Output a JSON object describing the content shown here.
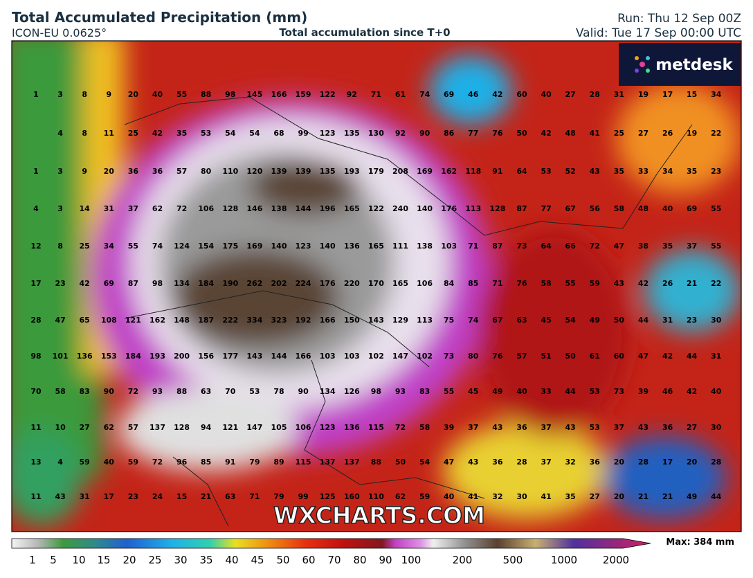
{
  "header": {
    "title": "Total Accumulated Precipitation (mm)",
    "model": "ICON-EU 0.0625°",
    "subtitle": "Total accumulation since T+0",
    "run": "Run: Thu 12 Sep 00Z",
    "valid": "Valid: Tue 17 Sep 00:00 UTC"
  },
  "logo": "metdesk",
  "watermark": "WXCHARTS.COM",
  "map": {
    "grid": [
      [
        1,
        3,
        8,
        9,
        20,
        40,
        55,
        88,
        98,
        145,
        166,
        159,
        122,
        92,
        71,
        61,
        74,
        69,
        46,
        42,
        60,
        40,
        27,
        28,
        31,
        19,
        17,
        15,
        34
      ],
      [
        null,
        4,
        8,
        11,
        25,
        42,
        35,
        53,
        54,
        54,
        68,
        99,
        123,
        135,
        130,
        92,
        90,
        86,
        77,
        76,
        50,
        42,
        48,
        41,
        25,
        27,
        26,
        19,
        22
      ],
      [
        1,
        3,
        9,
        20,
        36,
        36,
        57,
        80,
        110,
        120,
        139,
        139,
        135,
        193,
        179,
        208,
        169,
        162,
        118,
        91,
        64,
        53,
        52,
        43,
        35,
        33,
        34,
        35,
        23
      ],
      [
        4,
        3,
        14,
        31,
        37,
        62,
        72,
        106,
        128,
        146,
        138,
        144,
        196,
        165,
        122,
        240,
        140,
        176,
        113,
        128,
        87,
        77,
        67,
        56,
        58,
        48,
        40,
        69,
        55
      ],
      [
        12,
        8,
        25,
        34,
        55,
        74,
        124,
        154,
        175,
        169,
        140,
        123,
        140,
        136,
        165,
        111,
        138,
        103,
        71,
        87,
        73,
        64,
        66,
        72,
        47,
        38,
        35,
        37,
        55
      ],
      [
        17,
        23,
        42,
        69,
        87,
        98,
        134,
        184,
        190,
        262,
        202,
        224,
        176,
        220,
        170,
        165,
        106,
        84,
        85,
        71,
        76,
        58,
        55,
        59,
        43,
        42,
        26,
        21,
        22
      ],
      [
        28,
        47,
        65,
        108,
        121,
        162,
        148,
        187,
        222,
        334,
        323,
        192,
        166,
        150,
        143,
        129,
        113,
        75,
        74,
        67,
        63,
        45,
        54,
        49,
        50,
        44,
        31,
        23,
        30
      ],
      [
        98,
        101,
        136,
        153,
        184,
        193,
        200,
        156,
        177,
        143,
        144,
        166,
        103,
        103,
        102,
        147,
        102,
        73,
        80,
        76,
        57,
        51,
        50,
        61,
        60,
        47,
        42,
        44,
        31
      ],
      [
        70,
        58,
        83,
        90,
        72,
        93,
        88,
        63,
        70,
        53,
        78,
        90,
        134,
        126,
        98,
        93,
        83,
        55,
        45,
        49,
        40,
        33,
        44,
        53,
        73,
        39,
        46,
        42,
        40
      ],
      [
        11,
        10,
        27,
        62,
        57,
        137,
        128,
        94,
        121,
        147,
        105,
        106,
        123,
        136,
        115,
        72,
        58,
        39,
        37,
        43,
        36,
        37,
        43,
        53,
        37,
        43,
        36,
        27,
        30
      ],
      [
        13,
        4,
        59,
        40,
        59,
        72,
        96,
        85,
        91,
        79,
        89,
        115,
        137,
        137,
        88,
        50,
        54,
        47,
        43,
        36,
        28,
        37,
        32,
        36,
        20,
        28,
        17,
        20,
        28
      ],
      [
        11,
        43,
        31,
        17,
        23,
        24,
        15,
        21,
        63,
        71,
        79,
        99,
        125,
        160,
        110,
        62,
        59,
        40,
        41,
        32,
        30,
        41,
        35,
        27,
        20,
        21,
        21,
        49,
        44
      ]
    ]
  },
  "colorbar": {
    "ticks": [
      1,
      5,
      10,
      15,
      20,
      25,
      30,
      35,
      40,
      45,
      50,
      60,
      70,
      80,
      90,
      100,
      200,
      500,
      1000,
      2000
    ],
    "max_label": "Max: 384 mm"
  }
}
